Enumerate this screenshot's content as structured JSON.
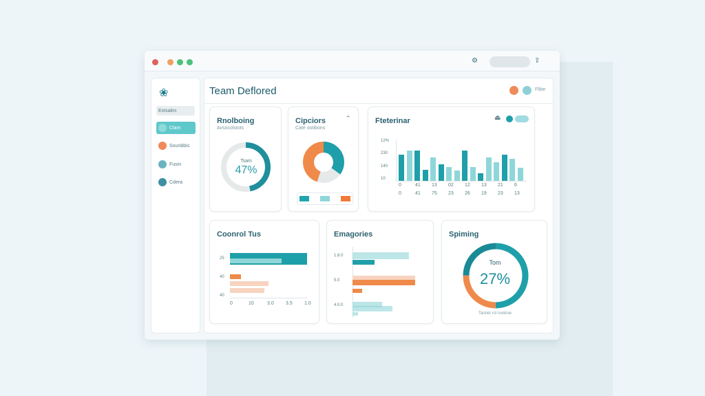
{
  "window": {
    "title": "Team Deflored",
    "user_label": "Flibe"
  },
  "sidebar": {
    "search": "Extsalirs",
    "items": [
      {
        "label": "Clam",
        "active": true
      },
      {
        "label": "Sounbbis"
      },
      {
        "label": "Fusin"
      },
      {
        "label": "Cdera"
      }
    ]
  },
  "colors": {
    "teal": "#1f9fa9",
    "light_teal": "#8fd6d9",
    "orange": "#ef8a4a",
    "grey": "#e6e9ea"
  },
  "cards": {
    "card1": {
      "title": "Rnolboing",
      "subtitle": "Avsocolstots",
      "center_label": "Tsam",
      "value_label": "47%",
      "value": 47
    },
    "card2": {
      "title": "Cipciors",
      "subtitle": "Cate ootibons",
      "slices": [
        {
          "color": "teal",
          "value": 35
        },
        {
          "color": "grey",
          "value": 20
        },
        {
          "color": "orange",
          "value": 45
        }
      ]
    },
    "card3": {
      "title": "Fteterinar"
    },
    "card4": {
      "title": "Coonrol Tus"
    },
    "card5": {
      "title": "Emagories"
    },
    "card6": {
      "title": "Spiming",
      "center_label": "Tom",
      "value_label": "27%",
      "footer": "Tanner rcl ruvkrue",
      "segments": [
        {
          "color": "teal",
          "value": 50
        },
        {
          "color": "orange",
          "value": 25
        },
        {
          "color": "dark_teal",
          "value": 25
        }
      ]
    }
  },
  "chart_data": [
    {
      "type": "bar",
      "title": "Fteterinar",
      "y_tick_labels": [
        "10",
        "140",
        "230",
        "12%"
      ],
      "x_labels_row1": [
        "0",
        "41",
        "13",
        "02",
        "12",
        "13",
        "21",
        "6"
      ],
      "x_labels_row2": [
        "0",
        "41",
        "75",
        "23",
        "26",
        "19",
        "23",
        "13"
      ],
      "bars": [
        [
          70,
          "teal"
        ],
        [
          80,
          "light_teal"
        ],
        [
          80,
          "teal"
        ],
        [
          30,
          "teal"
        ],
        [
          62,
          "light_teal"
        ],
        [
          44,
          "teal"
        ],
        [
          36,
          "light_teal"
        ],
        [
          28,
          "light_teal"
        ],
        [
          80,
          "teal"
        ],
        [
          36,
          "light_teal"
        ],
        [
          20,
          "teal"
        ],
        [
          62,
          "light_teal"
        ],
        [
          50,
          "light_teal"
        ],
        [
          70,
          "teal"
        ],
        [
          58,
          "light_teal"
        ],
        [
          34,
          "light_teal"
        ]
      ]
    },
    {
      "type": "bar",
      "orientation": "horizontal",
      "title": "Coonrol Tus",
      "y_tick_labels": [
        "25",
        "40",
        "40"
      ],
      "x_tick_labels": [
        "0",
        "10",
        "3.0",
        "3.5",
        "1.0"
      ],
      "bars": [
        [
          100,
          "teal"
        ],
        [
          67,
          "light_teal"
        ],
        [
          14,
          "orange"
        ],
        [
          50,
          "orange_light"
        ],
        [
          45,
          "orange_light"
        ]
      ]
    },
    {
      "type": "bar",
      "orientation": "horizontal",
      "title": "Emagories",
      "y_tick_labels": [
        "1.8.0",
        "5.0",
        "4.0.0"
      ],
      "bars": [
        [
          85,
          "light_teal"
        ],
        [
          33,
          "teal"
        ],
        [
          95,
          "orange_light"
        ],
        [
          95,
          "orange"
        ],
        [
          15,
          "orange"
        ],
        [
          45,
          "light_teal"
        ],
        [
          60,
          "light_teal"
        ],
        [
          8,
          "light_teal"
        ]
      ]
    }
  ]
}
